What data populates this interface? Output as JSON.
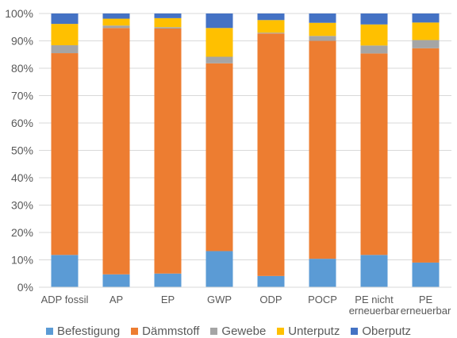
{
  "chart_data": {
    "type": "bar",
    "stacked": true,
    "categories": [
      "ADP fossil",
      "AP",
      "EP",
      "GWP",
      "ODP",
      "POCP",
      "PE nicht erneuerbar",
      "PE erneuerbar"
    ],
    "category_lines": [
      [
        "ADP fossil"
      ],
      [
        "AP"
      ],
      [
        "EP"
      ],
      [
        "GWP"
      ],
      [
        "ODP"
      ],
      [
        "POCP"
      ],
      [
        "PE nicht",
        "erneuerbar"
      ],
      [
        "PE",
        "erneuerbar"
      ]
    ],
    "series": [
      {
        "name": "Befestigung",
        "color": "#5B9BD5",
        "values": [
          11.8,
          4.7,
          5.0,
          13.2,
          4.1,
          10.4,
          11.8,
          9.0
        ]
      },
      {
        "name": "Dämmstoff",
        "color": "#ED7D31",
        "values": [
          73.7,
          90.0,
          89.5,
          68.6,
          88.6,
          79.6,
          73.6,
          78.3
        ]
      },
      {
        "name": "Gewebe",
        "color": "#A5A5A5",
        "values": [
          2.9,
          0.9,
          0.5,
          2.4,
          0.3,
          1.8,
          2.9,
          3.0
        ]
      },
      {
        "name": "Unterputz",
        "color": "#FFC000",
        "values": [
          7.8,
          2.5,
          3.3,
          10.5,
          4.6,
          4.8,
          7.7,
          6.4
        ]
      },
      {
        "name": "Oberputz",
        "color": "#4472C4",
        "values": [
          3.8,
          1.9,
          1.7,
          5.3,
          2.4,
          3.4,
          4.0,
          3.3
        ]
      }
    ],
    "ylim": [
      0,
      100
    ],
    "yticks": [
      "0%",
      "10%",
      "20%",
      "30%",
      "40%",
      "50%",
      "60%",
      "70%",
      "80%",
      "90%",
      "100%"
    ],
    "grid": true,
    "legend_position": "bottom",
    "title": "",
    "xlabel": "",
    "ylabel": ""
  }
}
